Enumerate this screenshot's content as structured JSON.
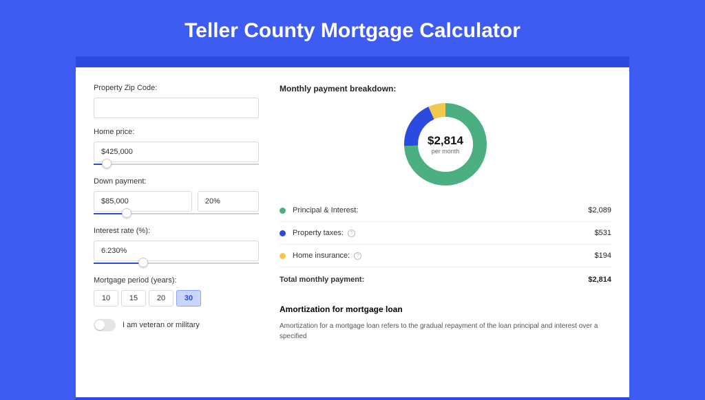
{
  "title": "Teller County Mortgage Calculator",
  "form": {
    "zip": {
      "label": "Property Zip Code:",
      "value": ""
    },
    "price": {
      "label": "Home price:",
      "value": "$425,000",
      "slider_pct": 8
    },
    "down": {
      "label": "Down payment:",
      "amount": "$85,000",
      "pct": "20%",
      "slider_pct": 20
    },
    "rate": {
      "label": "Interest rate (%):",
      "value": "6.230%",
      "slider_pct": 30
    },
    "period": {
      "label": "Mortgage period (years):",
      "options": [
        "10",
        "15",
        "20",
        "30"
      ],
      "selected": "30"
    },
    "veteran": {
      "label": "I am veteran or military",
      "on": false
    }
  },
  "breakdown": {
    "title": "Monthly payment breakdown:",
    "total_amount": "$2,814",
    "total_sub": "per month",
    "items": [
      {
        "label": "Principal & Interest:",
        "value": "$2,089",
        "color": "#4caf82",
        "pct": 74.2,
        "info": false
      },
      {
        "label": "Property taxes:",
        "value": "$531",
        "color": "#2b4be0",
        "pct": 18.9,
        "info": true
      },
      {
        "label": "Home insurance:",
        "value": "$194",
        "color": "#f2c94c",
        "pct": 6.9,
        "info": true
      }
    ],
    "total_row": {
      "label": "Total monthly payment:",
      "value": "$2,814"
    },
    "donut": {
      "radius": 50,
      "stroke": 20,
      "background": "#ffffff"
    }
  },
  "amort": {
    "title": "Amortization for mortgage loan",
    "text": "Amortization for a mortgage loan refers to the gradual repayment of the loan principal and interest over a specified"
  },
  "colors": {
    "page_bg": "#3e5cf2",
    "band_bg": "#2b4be0",
    "card_bg": "#ffffff"
  }
}
